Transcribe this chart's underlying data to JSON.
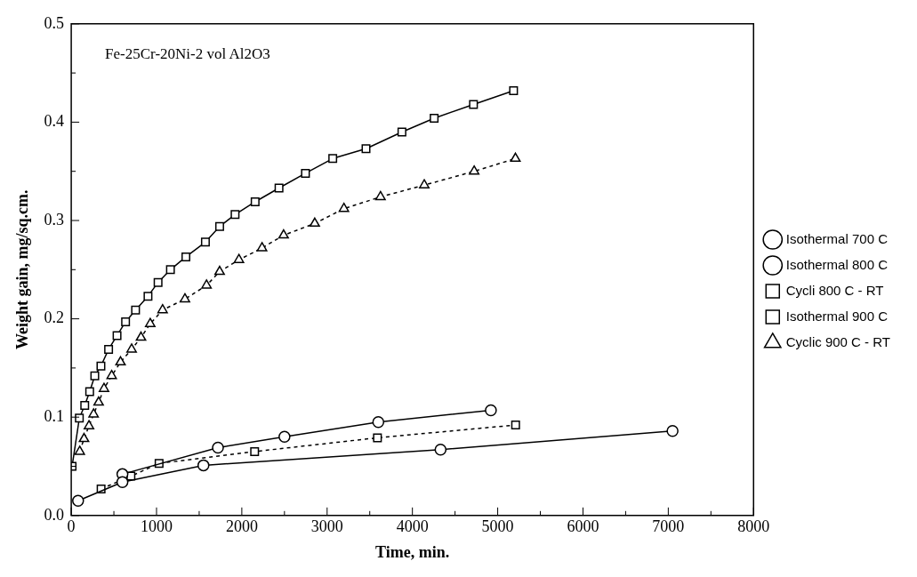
{
  "chart_data": {
    "type": "line",
    "xlabel": "Time, min.",
    "ylabel": "Weight gain, mg/sq.cm.",
    "annotations": [
      "Fe-25Cr-20Ni-2 vol Al2O3"
    ],
    "xlim": [
      0,
      8000
    ],
    "ylim": [
      0,
      0.5
    ],
    "xticks": [
      0,
      1000,
      2000,
      3000,
      4000,
      5000,
      6000,
      7000,
      8000
    ],
    "yticks": [
      {
        "value": 0,
        "label": "0.0"
      },
      {
        "value": 0.1,
        "label": "0.1"
      },
      {
        "value": 0.2,
        "label": "0.2"
      },
      {
        "value": 0.3,
        "label": "0.3"
      },
      {
        "value": 0.4,
        "label": "0.4"
      },
      {
        "value": 0.5,
        "label": "0.5"
      }
    ],
    "grid": false,
    "legend": "right",
    "series": [
      {
        "name": "Isothermal 700 C",
        "color": "#000000",
        "marker": "circle",
        "line_style": "solid",
        "x": [
          80,
          600,
          1550,
          4330,
          7050
        ],
        "values": [
          0.015,
          0.034,
          0.051,
          0.067,
          0.086
        ]
      },
      {
        "name": "Isothermal 800 C",
        "color": "#000000",
        "marker": "circle",
        "line_style": "solid",
        "x": [
          600,
          1720,
          2500,
          3600,
          4920
        ],
        "values": [
          0.042,
          0.069,
          0.08,
          0.095,
          0.107
        ]
      },
      {
        "name": "Cycli 800 C - RT",
        "color": "#000000",
        "marker": "square",
        "line_style": "dashed",
        "x": [
          350,
          700,
          1030,
          2150,
          3590,
          5210
        ],
        "values": [
          0.027,
          0.04,
          0.053,
          0.065,
          0.079,
          0.092
        ]
      },
      {
        "name": "Isothermal 900 C",
        "color": "#000000",
        "marker": "square",
        "line_style": "solid",
        "x": [
          10,
          95,
          158,
          216,
          276,
          348,
          438,
          537,
          637,
          754,
          900,
          1018,
          1163,
          1344,
          1573,
          1740,
          1921,
          2156,
          2436,
          2746,
          3066,
          3456,
          3877,
          4255,
          4716,
          5186
        ],
        "values": [
          0.05,
          0.099,
          0.112,
          0.126,
          0.142,
          0.152,
          0.169,
          0.183,
          0.197,
          0.209,
          0.223,
          0.237,
          0.25,
          0.263,
          0.278,
          0.294,
          0.306,
          0.319,
          0.333,
          0.348,
          0.363,
          0.373,
          0.39,
          0.404,
          0.418,
          0.432
        ]
      },
      {
        "name": "Cyclic 900 C - RT",
        "color": "#000000",
        "marker": "triangle",
        "line_style": "dashed",
        "x": [
          100,
          150,
          208,
          262,
          321,
          384,
          474,
          578,
          708,
          818,
          926,
          1071,
          1333,
          1586,
          1740,
          1966,
          2237,
          2490,
          2855,
          3197,
          3626,
          4139,
          4724,
          5208
        ],
        "values": [
          0.065,
          0.078,
          0.091,
          0.103,
          0.115,
          0.129,
          0.142,
          0.156,
          0.169,
          0.181,
          0.195,
          0.209,
          0.22,
          0.234,
          0.248,
          0.26,
          0.272,
          0.285,
          0.297,
          0.312,
          0.324,
          0.336,
          0.35,
          0.363
        ]
      }
    ]
  }
}
